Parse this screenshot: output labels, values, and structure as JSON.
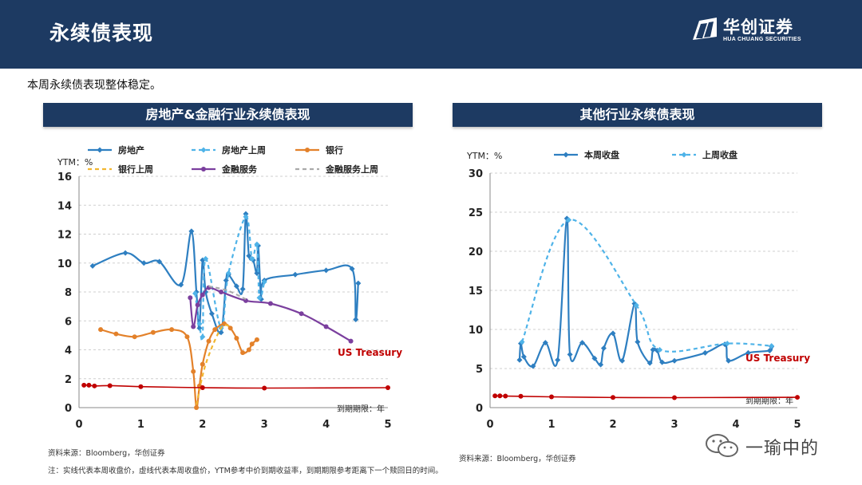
{
  "header": {
    "title": "永续债表现",
    "logo_cn": "华创证券",
    "logo_en": "HUA CHUANG SECURITIES"
  },
  "intro": "本周永续债表现整体稳定。",
  "left_panel": {
    "title": "房地产&金融行业永续债表现",
    "source": "资料来源：Bloomberg，华创证券"
  },
  "right_panel": {
    "title": "其他行业永续债表现",
    "source": "资料来源：Bloomberg，华创证券"
  },
  "footnote": "注：实线代表本周收盘价，虚线代表本周收盘价，YTM参考中价到期收益率，到期期限参考距离下一个赎回日的时间。",
  "watermark": "一瑜中的",
  "colors": {
    "navy": "#1d3a62",
    "property": "#2e7fc1",
    "property_prev": "#4fb3e8",
    "bank": "#e3812a",
    "bank_prev": "#f2b630",
    "fin": "#7b3f9e",
    "fin_prev": "#aaaaaa",
    "treasury": "#c00000"
  },
  "chart_data": [
    {
      "type": "line",
      "ylabel_text": "YTM：%",
      "xlabel_text": "到期期限：年",
      "annotation": "US Treasury",
      "xlim": [
        0,
        5
      ],
      "ylim": [
        0,
        16
      ],
      "xticks": [
        0,
        1,
        2,
        3,
        4,
        5
      ],
      "yticks": [
        0,
        2,
        4,
        6,
        8,
        10,
        12,
        14,
        16
      ],
      "legend": [
        "房地产",
        "房地产上周",
        "银行",
        "银行上周",
        "金融服务",
        "金融服务上周"
      ],
      "series": [
        {
          "name": "房地产",
          "style": "solid",
          "marker": "diamond",
          "color": "#2e7fc1",
          "x": [
            0.22,
            0.75,
            1.05,
            1.3,
            1.65,
            1.82,
            1.9,
            1.95,
            2.0,
            2.05,
            2.15,
            2.3,
            2.38,
            2.42,
            2.55,
            2.65,
            2.7,
            2.75,
            2.82,
            2.88,
            2.9,
            2.95,
            3.0,
            3.5,
            4.0,
            4.42,
            4.48,
            4.52
          ],
          "y": [
            9.8,
            10.7,
            10.0,
            10.1,
            8.5,
            12.2,
            8.0,
            5.5,
            10.2,
            8.0,
            6.5,
            5.2,
            8.8,
            9.2,
            8.4,
            8.2,
            13.4,
            10.5,
            10.2,
            9.3,
            11.2,
            7.5,
            8.8,
            9.2,
            9.5,
            9.6,
            6.1,
            8.6
          ]
        },
        {
          "name": "房地产上周",
          "style": "dashed",
          "marker": "diamond",
          "color": "#4fb3e8",
          "x": [
            1.88,
            1.95,
            2.0,
            2.05,
            2.3,
            2.42,
            2.7,
            2.8,
            2.88,
            2.92,
            3.0
          ],
          "y": [
            7.9,
            5.8,
            4.9,
            10.3,
            5.5,
            9.3,
            13.2,
            10.3,
            11.3,
            7.6,
            8.7
          ]
        },
        {
          "name": "银行",
          "style": "solid",
          "marker": "circle",
          "color": "#e3812a",
          "x": [
            0.35,
            0.6,
            0.9,
            1.2,
            1.5,
            1.75,
            1.85,
            1.9,
            1.95,
            2.0,
            2.1,
            2.2,
            2.35,
            2.45,
            2.55,
            2.65,
            2.75,
            2.8,
            2.88
          ],
          "y": [
            5.4,
            5.1,
            4.9,
            5.2,
            5.4,
            4.9,
            2.5,
            0.0,
            1.5,
            3.0,
            4.6,
            5.4,
            5.8,
            5.5,
            4.8,
            3.8,
            4.0,
            4.4,
            4.7
          ]
        },
        {
          "name": "银行上周",
          "style": "dashed",
          "marker": "none",
          "color": "#f2b630",
          "x": [
            1.9,
            2.05,
            2.3,
            2.45
          ],
          "y": [
            0.2,
            3.0,
            5.5,
            5.6
          ]
        },
        {
          "name": "金融服务",
          "style": "solid",
          "marker": "circle",
          "color": "#7b3f9e",
          "x": [
            1.8,
            1.85,
            1.92,
            2.0,
            2.1,
            2.3,
            2.7,
            3.1,
            3.6,
            4.0,
            4.4
          ],
          "y": [
            7.6,
            5.6,
            7.1,
            7.8,
            8.3,
            8.0,
            7.4,
            7.2,
            6.5,
            5.6,
            4.6
          ]
        },
        {
          "name": "金融服务上周",
          "style": "dashed",
          "marker": "none",
          "color": "#aaaaaa",
          "x": [
            2.1,
            2.4,
            2.7
          ],
          "y": [
            8.4,
            8.1,
            7.5
          ]
        },
        {
          "name": "US Treasury",
          "style": "solid",
          "marker": "circle",
          "color": "#c00000",
          "x": [
            0.08,
            0.16,
            0.25,
            0.5,
            1.0,
            2.0,
            3.0,
            5.0
          ],
          "y": [
            1.55,
            1.55,
            1.5,
            1.52,
            1.45,
            1.38,
            1.35,
            1.38
          ]
        }
      ]
    },
    {
      "type": "line",
      "ylabel_text": "YTM：%",
      "xlabel_text": "到期期限：年",
      "annotation": "US Treasury",
      "xlim": [
        0,
        5
      ],
      "ylim": [
        0,
        30
      ],
      "xticks": [
        0,
        1,
        2,
        3,
        4,
        5
      ],
      "yticks": [
        0,
        5,
        10,
        15,
        20,
        25,
        30
      ],
      "legend": [
        "本周收盘",
        "上周收盘"
      ],
      "series": [
        {
          "name": "本周收盘",
          "style": "solid",
          "marker": "diamond",
          "color": "#2e7fc1",
          "x": [
            0.48,
            0.5,
            0.55,
            0.7,
            0.9,
            1.1,
            1.25,
            1.3,
            1.5,
            1.7,
            1.8,
            1.85,
            2.0,
            2.15,
            2.35,
            2.4,
            2.6,
            2.65,
            2.72,
            2.8,
            3.0,
            3.5,
            3.82,
            3.88,
            4.2,
            4.55,
            4.58
          ],
          "y": [
            6.1,
            8.2,
            6.5,
            5.3,
            8.3,
            6.1,
            24.2,
            6.8,
            8.3,
            6.3,
            5.5,
            7.6,
            9.5,
            6.0,
            13.3,
            8.4,
            5.7,
            7.4,
            7.3,
            5.8,
            6.0,
            7.0,
            8.1,
            6.0,
            7.0,
            7.3,
            7.8
          ]
        },
        {
          "name": "上周收盘",
          "style": "dashed",
          "marker": "diamond",
          "color": "#4fb3e8",
          "x": [
            0.52,
            1.28,
            2.38,
            2.76,
            3.86,
            4.58
          ],
          "y": [
            8.4,
            24.0,
            13.1,
            7.4,
            8.2,
            7.9
          ]
        },
        {
          "name": "US Treasury",
          "style": "solid",
          "marker": "circle",
          "color": "#c00000",
          "x": [
            0.08,
            0.16,
            0.25,
            0.5,
            1.0,
            2.0,
            3.0,
            5.0
          ],
          "y": [
            1.5,
            1.5,
            1.48,
            1.45,
            1.38,
            1.3,
            1.28,
            1.32
          ]
        }
      ]
    }
  ]
}
